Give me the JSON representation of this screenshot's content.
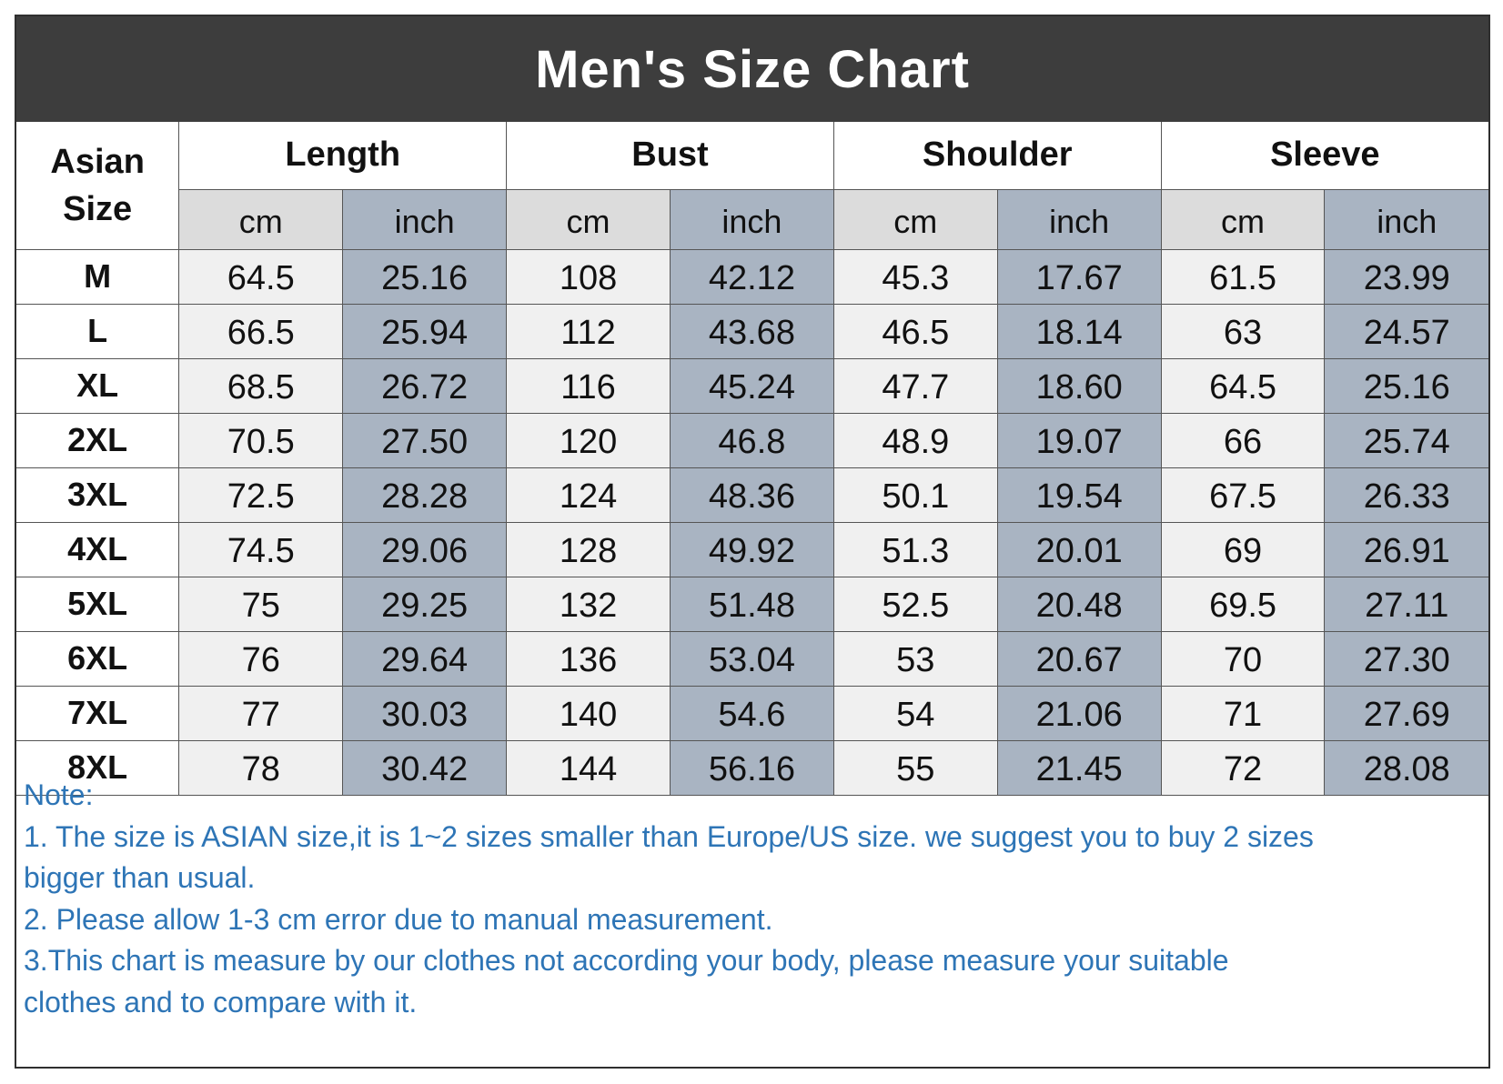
{
  "title": "Men's Size Chart",
  "size_header": [
    "Asian",
    "Size"
  ],
  "groups": [
    "Length",
    "Bust",
    "Shoulder",
    "Sleeve"
  ],
  "units": [
    "cm",
    "inch"
  ],
  "rows": [
    [
      "M",
      "64.5",
      "25.16",
      "108",
      "42.12",
      "45.3",
      "17.67",
      "61.5",
      "23.99"
    ],
    [
      "L",
      "66.5",
      "25.94",
      "112",
      "43.68",
      "46.5",
      "18.14",
      "63",
      "24.57"
    ],
    [
      "XL",
      "68.5",
      "26.72",
      "116",
      "45.24",
      "47.7",
      "18.60",
      "64.5",
      "25.16"
    ],
    [
      "2XL",
      "70.5",
      "27.50",
      "120",
      "46.8",
      "48.9",
      "19.07",
      "66",
      "25.74"
    ],
    [
      "3XL",
      "72.5",
      "28.28",
      "124",
      "48.36",
      "50.1",
      "19.54",
      "67.5",
      "26.33"
    ],
    [
      "4XL",
      "74.5",
      "29.06",
      "128",
      "49.92",
      "51.3",
      "20.01",
      "69",
      "26.91"
    ],
    [
      "5XL",
      "75",
      "29.25",
      "132",
      "51.48",
      "52.5",
      "20.48",
      "69.5",
      "27.11"
    ],
    [
      "6XL",
      "76",
      "29.64",
      "136",
      "53.04",
      "53",
      "20.67",
      "70",
      "27.30"
    ],
    [
      "7XL",
      "77",
      "30.03",
      "140",
      "54.6",
      "54",
      "21.06",
      "71",
      "27.69"
    ],
    [
      "8XL",
      "78",
      "30.42",
      "144",
      "56.16",
      "55",
      "21.45",
      "72",
      "28.08"
    ]
  ],
  "notes": [
    "Note:",
    "1. The size is ASIAN size,it is 1~2 sizes smaller than Europe/US size. we suggest you to buy 2 sizes",
    "bigger than usual.",
    "2. Please allow 1-3 cm error due to manual measurement.",
    "3.This chart is measure by our clothes not according your body, please measure your suitable",
    "clothes and to compare with it."
  ],
  "colors": {
    "title_bg": "#3d3d3d",
    "title_text": "#ffffff",
    "cm_header_bg": "#dcdcdc",
    "inch_bg": "#a9b4c2",
    "cm_cell_bg": "#f0f0f0",
    "note_text": "#2e75b6"
  }
}
